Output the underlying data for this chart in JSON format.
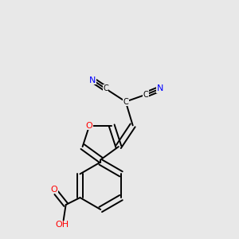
{
  "background_color": "#e8e8e8",
  "bond_color": "#000000",
  "atom_colors": {
    "N": "#0000ff",
    "O": "#ff0000",
    "C": "#000000",
    "H": "#000000"
  },
  "figsize": [
    3.0,
    3.0
  ],
  "dpi": 100
}
